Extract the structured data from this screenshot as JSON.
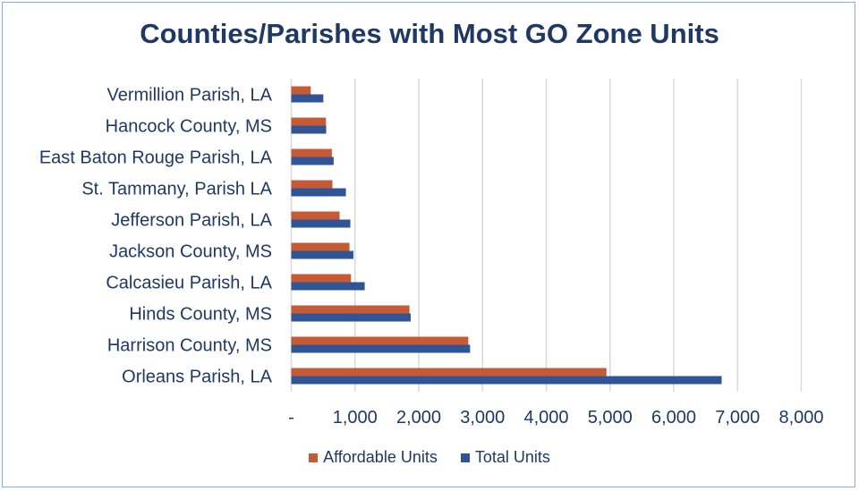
{
  "chart_data": {
    "type": "bar",
    "orientation": "horizontal",
    "title": "Counties/Parishes with Most GO Zone Units",
    "categories": [
      "Vermillion Parish, LA",
      "Hancock County, MS",
      "East Baton Rouge Parish, LA",
      "St. Tammany, Parish LA",
      "Jefferson Parish, LA",
      "Jackson County, MS",
      "Calcasieu Parish, LA",
      "Hinds County, MS",
      "Harrison County, MS",
      "Orleans Parish, LA"
    ],
    "series": [
      {
        "name": "Affordable Units",
        "color": "#c55a35",
        "values": [
          306,
          545,
          637,
          646,
          758,
          913,
          937,
          1854,
          2777,
          4944
        ]
      },
      {
        "name": "Total Units",
        "color": "#2f5597",
        "values": [
          503,
          548,
          665,
          857,
          927,
          975,
          1152,
          1873,
          2805,
          6751
        ]
      }
    ],
    "xlim": [
      0,
      8000
    ],
    "xticks": [
      0,
      1000,
      2000,
      3000,
      4000,
      5000,
      6000,
      7000,
      8000
    ],
    "xtick_labels": [
      "-",
      "1,000",
      "2,000",
      "3,000",
      "4,000",
      "5,000",
      "6,000",
      "7,000",
      "8,000"
    ],
    "grid": "vertical",
    "legend": "bottom"
  }
}
